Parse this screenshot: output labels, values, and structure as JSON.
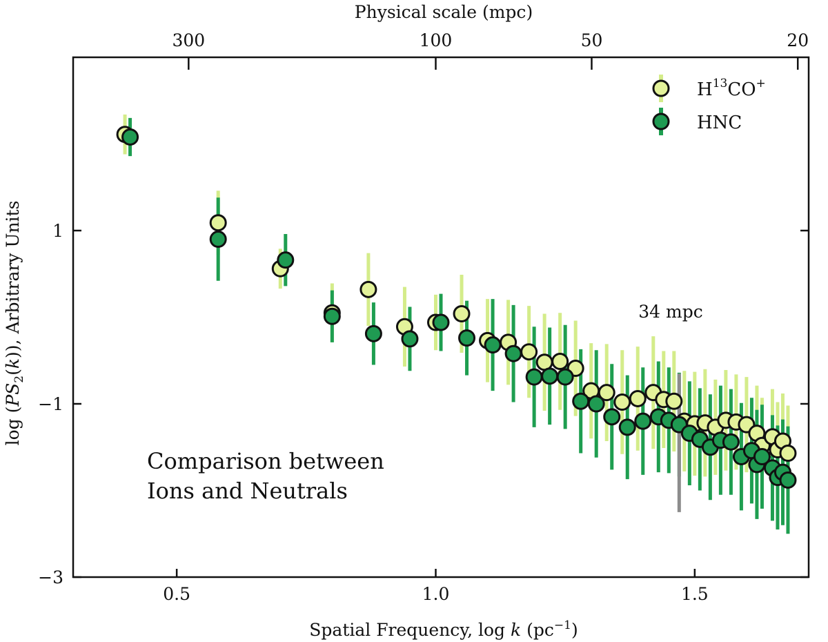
{
  "chart_data": {
    "type": "scatter",
    "xlabel": "Spatial Frequency, log k (pc⁻¹)",
    "ylabel": "log (PS₂(k)), Arbitrary Units",
    "top_xlabel": "Physical scale (mpc)",
    "xlim": [
      0.3,
      1.72
    ],
    "ylim": [
      -3,
      3
    ],
    "x_ticks": [
      0.5,
      1.0,
      1.5
    ],
    "x_tick_labels": [
      "0.5",
      "1.0",
      "1.5"
    ],
    "y_ticks": [
      -3,
      -1,
      1
    ],
    "y_tick_labels": [
      "−3",
      "−1",
      "1"
    ],
    "top_ticks": [
      300,
      100,
      50,
      20
    ],
    "top_tick_labels": [
      "300",
      "100",
      "50",
      "20"
    ],
    "annotation_text": [
      "Comparison between",
      "Ions and Neutrals"
    ],
    "marker_line": {
      "x": 1.47,
      "y_range": [
        -2.25,
        -0.65
      ],
      "label": "34 mpc"
    },
    "legend": {
      "position": "top-right"
    },
    "series": [
      {
        "name": "H¹³CO⁺",
        "fill": "#e3f29a",
        "err_color": "#d4ec8a",
        "points": [
          [
            0.4,
            2.11,
            0.23
          ],
          [
            0.58,
            1.09,
            0.37
          ],
          [
            0.7,
            0.56,
            0.23
          ],
          [
            0.8,
            0.05,
            0.34
          ],
          [
            0.87,
            0.32,
            0.42
          ],
          [
            0.94,
            -0.11,
            0.46
          ],
          [
            1.0,
            -0.06,
            0.32
          ],
          [
            1.05,
            0.04,
            0.45
          ],
          [
            1.1,
            -0.27,
            0.48
          ],
          [
            1.14,
            -0.29,
            0.49
          ],
          [
            1.18,
            -0.4,
            0.53
          ],
          [
            1.21,
            -0.52,
            0.56
          ],
          [
            1.24,
            -0.51,
            0.56
          ],
          [
            1.27,
            -0.59,
            0.55
          ],
          [
            1.3,
            -0.85,
            0.55
          ],
          [
            1.33,
            -0.87,
            0.56
          ],
          [
            1.36,
            -0.98,
            0.6
          ],
          [
            1.39,
            -0.94,
            0.6
          ],
          [
            1.42,
            -0.87,
            0.65
          ],
          [
            1.44,
            -0.95,
            0.56
          ],
          [
            1.46,
            -0.97,
            0.58
          ],
          [
            1.48,
            -1.2,
            0.58
          ],
          [
            1.5,
            -1.23,
            0.6
          ],
          [
            1.52,
            -1.22,
            0.62
          ],
          [
            1.54,
            -1.27,
            0.55
          ],
          [
            1.56,
            -1.19,
            0.58
          ],
          [
            1.58,
            -1.21,
            0.55
          ],
          [
            1.6,
            -1.24,
            0.55
          ],
          [
            1.62,
            -1.34,
            0.55
          ],
          [
            1.63,
            -1.48,
            0.55
          ],
          [
            1.65,
            -1.38,
            0.55
          ],
          [
            1.66,
            -1.53,
            0.55
          ],
          [
            1.67,
            -1.43,
            0.55
          ],
          [
            1.68,
            -1.57,
            0.55
          ]
        ]
      },
      {
        "name": "HNC",
        "fill": "#1f9a52",
        "err_color": "#1e9e50",
        "points": [
          [
            0.41,
            2.08,
            0.22
          ],
          [
            0.58,
            0.9,
            0.48
          ],
          [
            0.71,
            0.66,
            0.3
          ],
          [
            0.8,
            0.01,
            0.3
          ],
          [
            0.88,
            -0.19,
            0.36
          ],
          [
            0.95,
            -0.25,
            0.37
          ],
          [
            1.01,
            -0.06,
            0.33
          ],
          [
            1.06,
            -0.24,
            0.43
          ],
          [
            1.11,
            -0.32,
            0.53
          ],
          [
            1.15,
            -0.42,
            0.56
          ],
          [
            1.19,
            -0.69,
            0.58
          ],
          [
            1.22,
            -0.68,
            0.56
          ],
          [
            1.25,
            -0.69,
            0.6
          ],
          [
            1.28,
            -0.97,
            0.6
          ],
          [
            1.31,
            -1.0,
            0.62
          ],
          [
            1.34,
            -1.15,
            0.61
          ],
          [
            1.37,
            -1.27,
            0.6
          ],
          [
            1.4,
            -1.2,
            0.62
          ],
          [
            1.43,
            -1.15,
            0.64
          ],
          [
            1.45,
            -1.19,
            0.61
          ],
          [
            1.47,
            -1.24,
            0.6
          ],
          [
            1.49,
            -1.34,
            0.6
          ],
          [
            1.51,
            -1.41,
            0.59
          ],
          [
            1.53,
            -1.5,
            0.61
          ],
          [
            1.55,
            -1.42,
            0.63
          ],
          [
            1.57,
            -1.44,
            0.61
          ],
          [
            1.59,
            -1.61,
            0.62
          ],
          [
            1.61,
            -1.54,
            0.61
          ],
          [
            1.62,
            -1.7,
            0.63
          ],
          [
            1.63,
            -1.61,
            0.6
          ],
          [
            1.65,
            -1.74,
            0.61
          ],
          [
            1.66,
            -1.85,
            0.6
          ],
          [
            1.67,
            -1.79,
            0.61
          ],
          [
            1.68,
            -1.88,
            0.62
          ]
        ]
      }
    ]
  }
}
